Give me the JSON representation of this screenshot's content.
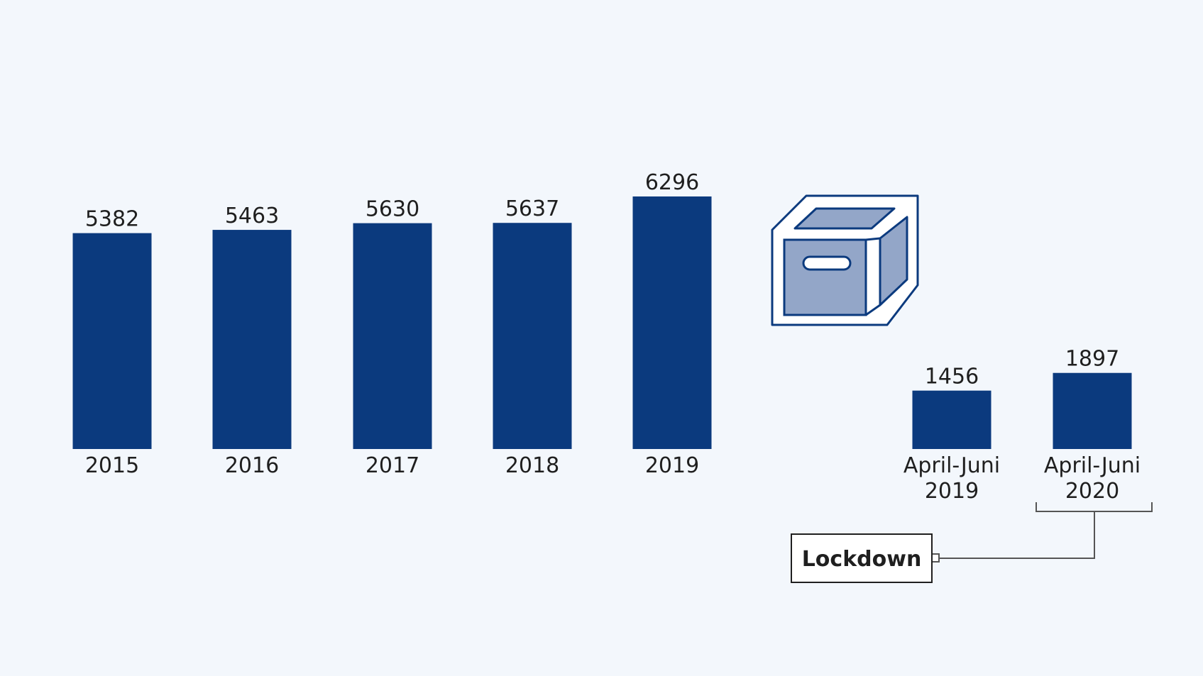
{
  "chart_data": {
    "type": "bar",
    "groups": [
      {
        "categories": [
          "2015",
          "2016",
          "2017",
          "2018",
          "2019"
        ],
        "values": [
          5382,
          5463,
          5630,
          5637,
          6296
        ]
      },
      {
        "categories": [
          [
            "April-Juni",
            "2019"
          ],
          [
            "April-Juni",
            "2020"
          ]
        ],
        "values": [
          1456,
          1897
        ]
      }
    ],
    "annotation": {
      "label": "Lockdown",
      "target_category": "April-Juni 2020"
    },
    "colors": {
      "bar": "#0b3a7e",
      "icon_stroke": "#0b3a7e",
      "icon_fill": "#93a6c8",
      "background": "#f3f7fc"
    },
    "icon": "archive-box-icon"
  }
}
